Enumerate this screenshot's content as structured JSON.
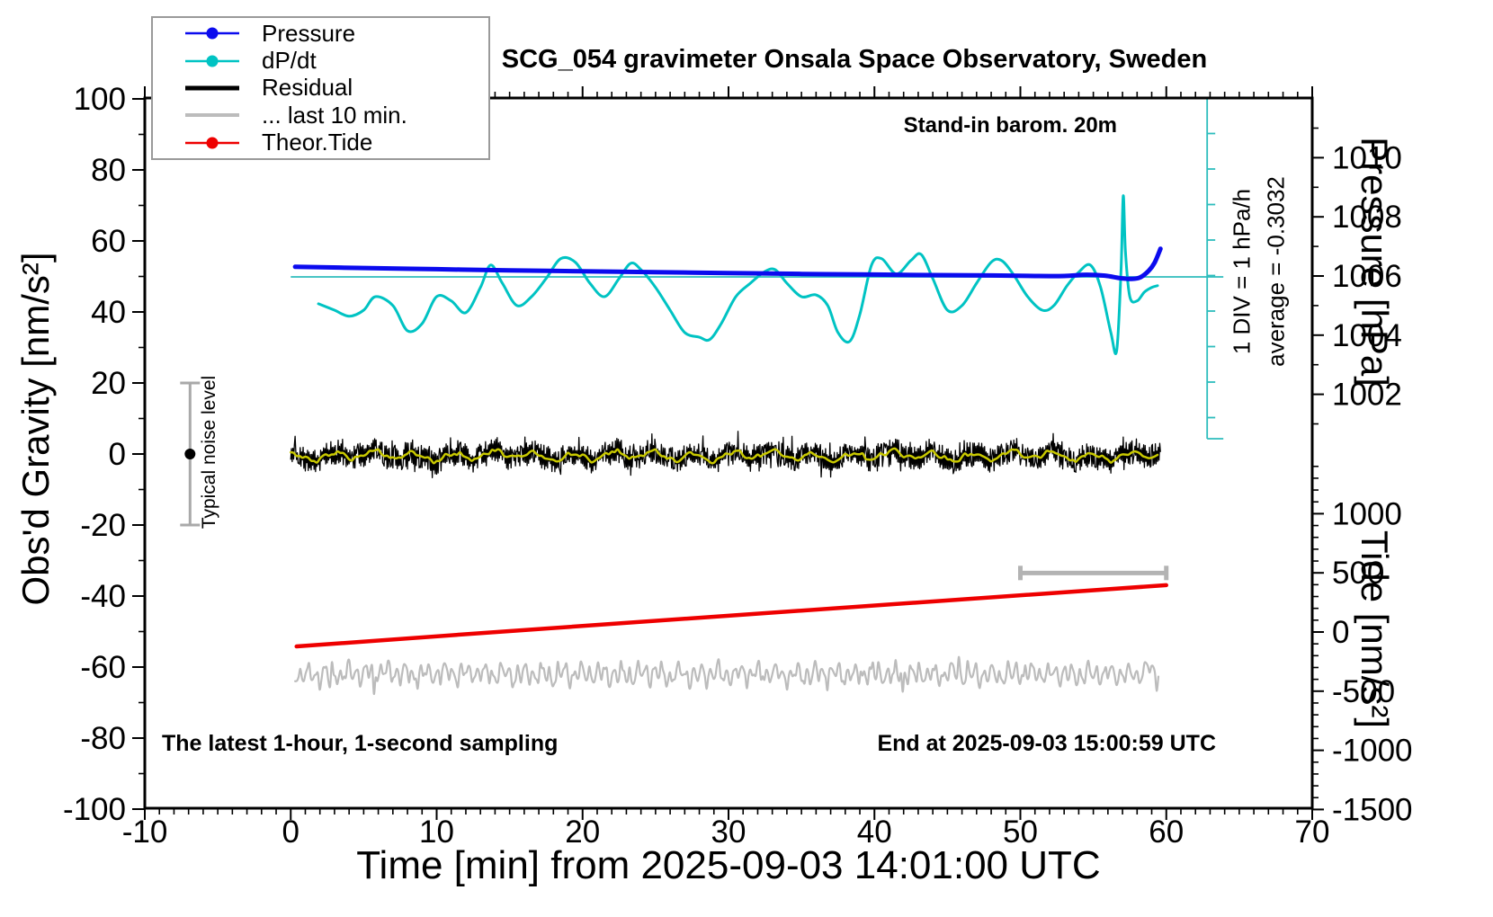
{
  "title": "SCG_054 gravimeter Onsala Space Observatory, Sweden",
  "annotations": {
    "barometer": "Stand-in barom. 20m",
    "div_scale": "1 DIV = 1 hPa/h",
    "average": "average = -0.3032",
    "noise_level": "Typical noise level",
    "sampling": "The latest 1-hour, 1-second sampling",
    "end_time": "End at 2025-09-03 15:00:59 UTC"
  },
  "axes": {
    "x": {
      "label": "Time [min] from 2025-09-03 14:01:00 UTC",
      "range": [
        -10,
        70
      ],
      "ticks": [
        -10,
        0,
        10,
        20,
        30,
        40,
        50,
        60,
        70
      ],
      "minor_step": 1
    },
    "left": {
      "label": "Obs'd Gravity [nm/s²]",
      "range": [
        -100,
        100
      ],
      "ticks": [
        100,
        80,
        60,
        40,
        20,
        0,
        -20,
        -40,
        -60,
        -80,
        -100
      ],
      "minor_step": 10
    },
    "right_pressure": {
      "label": "Pressure [hPa]",
      "ticks": [
        1010,
        1008,
        1006,
        1004,
        1002
      ],
      "minor_step": 1
    },
    "right_tide": {
      "label": "Tide [nm/s²]",
      "ticks": [
        1000,
        500,
        0,
        -500,
        -1000,
        -1500
      ],
      "minor_step": 100
    }
  },
  "legend": [
    {
      "label": "Pressure",
      "color": "#0b0bee",
      "lw": 2.5,
      "marker": true
    },
    {
      "label": "dP/dt",
      "color": "#00c3c3",
      "lw": 2.5,
      "marker": true
    },
    {
      "label": "Residual",
      "color": "#000000",
      "lw": 5,
      "marker": false
    },
    {
      "label": "... last 10 min.",
      "color": "#bcbcbc",
      "lw": 4,
      "marker": false
    },
    {
      "label": "Theor.Tide",
      "color": "#ee0000",
      "lw": 2.5,
      "marker": true
    }
  ],
  "colors": {
    "pressure": "#0b0bee",
    "dpdt": "#00c3c3",
    "residual": "#000000",
    "smoothed": "#c9c900",
    "last10": "#bcbcbc",
    "tide_line": "#ee0000",
    "ref_line": "#2ebdbd",
    "scalebar_gray": "#b3b3b3",
    "noise_bar": "#a9a9a9",
    "frame": "#000000"
  },
  "chart_data": {
    "type": "line",
    "x_unit": "minutes from 2025-09-03 14:01:00 UTC",
    "series": [
      {
        "name": "Pressure",
        "axis": "pressure_hPa",
        "points": [
          [
            0.3,
            1006.31
          ],
          [
            5,
            1006.27
          ],
          [
            10,
            1006.23
          ],
          [
            15,
            1006.19
          ],
          [
            20,
            1006.16
          ],
          [
            25,
            1006.13
          ],
          [
            30,
            1006.1
          ],
          [
            35,
            1006.07
          ],
          [
            40,
            1006.05
          ],
          [
            44,
            1006.03
          ],
          [
            48,
            1006.02
          ],
          [
            51,
            1006.0
          ],
          [
            53,
            1006.0
          ],
          [
            54.5,
            1006.04
          ],
          [
            55.8,
            1006.01
          ],
          [
            56.8,
            1005.93
          ],
          [
            57.6,
            1005.9
          ],
          [
            58.2,
            1005.95
          ],
          [
            58.8,
            1006.18
          ],
          [
            59.2,
            1006.45
          ],
          [
            59.6,
            1006.92
          ]
        ]
      },
      {
        "name": "dP/dt",
        "axis": "hPa_per_hour",
        "reference_average": -0.3032,
        "points": [
          [
            1.9,
            -1.06
          ],
          [
            3,
            -1.24
          ],
          [
            4,
            -1.41
          ],
          [
            5,
            -1.24
          ],
          [
            5.8,
            -0.86
          ],
          [
            7,
            -1.11
          ],
          [
            8,
            -1.82
          ],
          [
            9,
            -1.62
          ],
          [
            10,
            -0.86
          ],
          [
            11,
            -0.98
          ],
          [
            12,
            -1.31
          ],
          [
            13,
            -0.6
          ],
          [
            13.7,
            0.03
          ],
          [
            14.5,
            -0.48
          ],
          [
            15.5,
            -1.11
          ],
          [
            16.5,
            -0.86
          ],
          [
            17.5,
            -0.35
          ],
          [
            18.5,
            0.21
          ],
          [
            19.5,
            0.11
          ],
          [
            20.5,
            -0.48
          ],
          [
            21.5,
            -0.86
          ],
          [
            22.5,
            -0.35
          ],
          [
            23.3,
            0.08
          ],
          [
            24,
            -0.1
          ],
          [
            25,
            -0.6
          ],
          [
            26,
            -1.24
          ],
          [
            27,
            -1.87
          ],
          [
            28,
            -2.0
          ],
          [
            28.7,
            -2.07
          ],
          [
            29.5,
            -1.62
          ],
          [
            30.5,
            -0.86
          ],
          [
            31.5,
            -0.48
          ],
          [
            32.5,
            -0.15
          ],
          [
            33.2,
            -0.1
          ],
          [
            34,
            -0.48
          ],
          [
            35,
            -0.86
          ],
          [
            36,
            -0.81
          ],
          [
            36.8,
            -1.11
          ],
          [
            37.5,
            -1.87
          ],
          [
            38.3,
            -2.12
          ],
          [
            39,
            -1.36
          ],
          [
            39.8,
            0.03
          ],
          [
            40.5,
            0.21
          ],
          [
            41.5,
            -0.22
          ],
          [
            42.5,
            0.16
          ],
          [
            43.2,
            0.33
          ],
          [
            44,
            -0.35
          ],
          [
            45,
            -1.24
          ],
          [
            46,
            -1.11
          ],
          [
            47,
            -0.48
          ],
          [
            48,
            0.11
          ],
          [
            48.7,
            0.16
          ],
          [
            49.5,
            -0.22
          ],
          [
            50.5,
            -0.86
          ],
          [
            51.5,
            -1.24
          ],
          [
            52.3,
            -1.11
          ],
          [
            53.2,
            -0.55
          ],
          [
            54,
            -0.17
          ],
          [
            54.8,
            0.03
          ],
          [
            55.5,
            -0.6
          ],
          [
            56.2,
            -1.87
          ],
          [
            56.6,
            -2.38
          ],
          [
            56.9,
            -0.1
          ],
          [
            57.05,
            1.98
          ],
          [
            57.2,
            0.41
          ],
          [
            57.5,
            -0.86
          ],
          [
            58,
            -0.98
          ],
          [
            58.5,
            -0.73
          ],
          [
            59,
            -0.6
          ],
          [
            59.4,
            -0.55
          ]
        ]
      },
      {
        "name": "Residual",
        "axis": "gravity_nm_s2",
        "stats": {
          "t_range": [
            0,
            59.6
          ],
          "mean": -0.5,
          "typical_half_amplitude": 4.5,
          "max_spike": 7
        }
      },
      {
        "name": "Residual smoothed",
        "axis": "gravity_nm_s2",
        "stats": {
          "t_range": [
            0,
            59.6
          ],
          "mean": -0.5,
          "half_amplitude": 1.6
        }
      },
      {
        "name": "... last 10 min.",
        "axis": "gravity_nm_s2_display",
        "stats": {
          "t_range": [
            0.3,
            59.5
          ],
          "display_center": -62,
          "half_amplitude": 3.5,
          "max_excursion": 8
        }
      },
      {
        "name": "Theor.Tide",
        "axis": "tide_nm_s2",
        "points": [
          [
            0.4,
            -122
          ],
          [
            15,
            8
          ],
          [
            30,
            138
          ],
          [
            45,
            267
          ],
          [
            60,
            396
          ]
        ]
      }
    ],
    "markers": {
      "noise_error_bar": {
        "t": -6.9,
        "center": 0,
        "half_height": 20
      },
      "dpdt_reference_line": {
        "value": -0.3032,
        "t_range": [
          0,
          62.8
        ]
      },
      "dpdt_scale_bar": {
        "t": 62.8,
        "div_hpa_per_h": 1
      },
      "last10_span_bar": {
        "t_range": [
          50,
          60
        ],
        "gravity_level": -33.5
      }
    }
  }
}
